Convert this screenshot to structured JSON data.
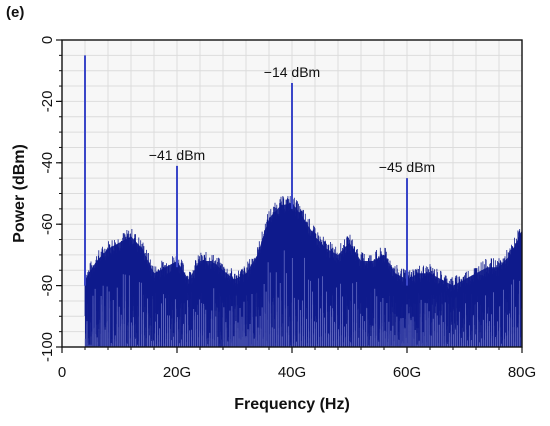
{
  "panel_label": "(e)",
  "chart_data": {
    "type": "line",
    "title": "",
    "xlabel": "Frequency (Hz)",
    "ylabel": "Power (dBm)",
    "xlim": [
      0,
      80
    ],
    "ylim": [
      -100,
      0
    ],
    "x_unit": "GHz",
    "grid": true,
    "x_ticks": [
      {
        "value": 0,
        "label": "0"
      },
      {
        "value": 20,
        "label": "20G"
      },
      {
        "value": 40,
        "label": "40G"
      },
      {
        "value": 60,
        "label": "60G"
      },
      {
        "value": 80,
        "label": "80G"
      }
    ],
    "y_ticks": [
      {
        "value": 0,
        "label": "0"
      },
      {
        "value": -20,
        "label": "-20"
      },
      {
        "value": -40,
        "label": "-40"
      },
      {
        "value": -60,
        "label": "-60"
      },
      {
        "value": -80,
        "label": "-80"
      },
      {
        "value": -100,
        "label": "-100"
      }
    ],
    "peaks": [
      {
        "x": 4,
        "y": -5,
        "label": ""
      },
      {
        "x": 20,
        "y": -41,
        "label": "−41 dBm"
      },
      {
        "x": 40,
        "y": -14,
        "label": "−14 dBm"
      },
      {
        "x": 60,
        "y": -45,
        "label": "−45 dBm"
      }
    ],
    "series": [
      {
        "color": "#0e1a8c",
        "x": [
          4,
          6,
          8,
          10,
          12,
          14,
          16,
          18,
          20,
          22,
          24,
          26,
          28,
          30,
          32,
          34,
          36,
          38,
          40,
          42,
          44,
          46,
          48,
          50,
          52,
          54,
          56,
          58,
          60,
          62,
          64,
          66,
          68,
          70,
          72,
          74,
          76,
          78,
          80
        ],
        "y": [
          -78,
          -72,
          -68,
          -66,
          -64,
          -68,
          -76,
          -74,
          -72,
          -78,
          -72,
          -72,
          -75,
          -78,
          -76,
          -70,
          -58,
          -54,
          -53,
          -58,
          -64,
          -68,
          -70,
          -66,
          -72,
          -72,
          -70,
          -76,
          -78,
          -76,
          -76,
          -78,
          -80,
          -78,
          -76,
          -74,
          -74,
          -70,
          -62
        ]
      }
    ]
  }
}
